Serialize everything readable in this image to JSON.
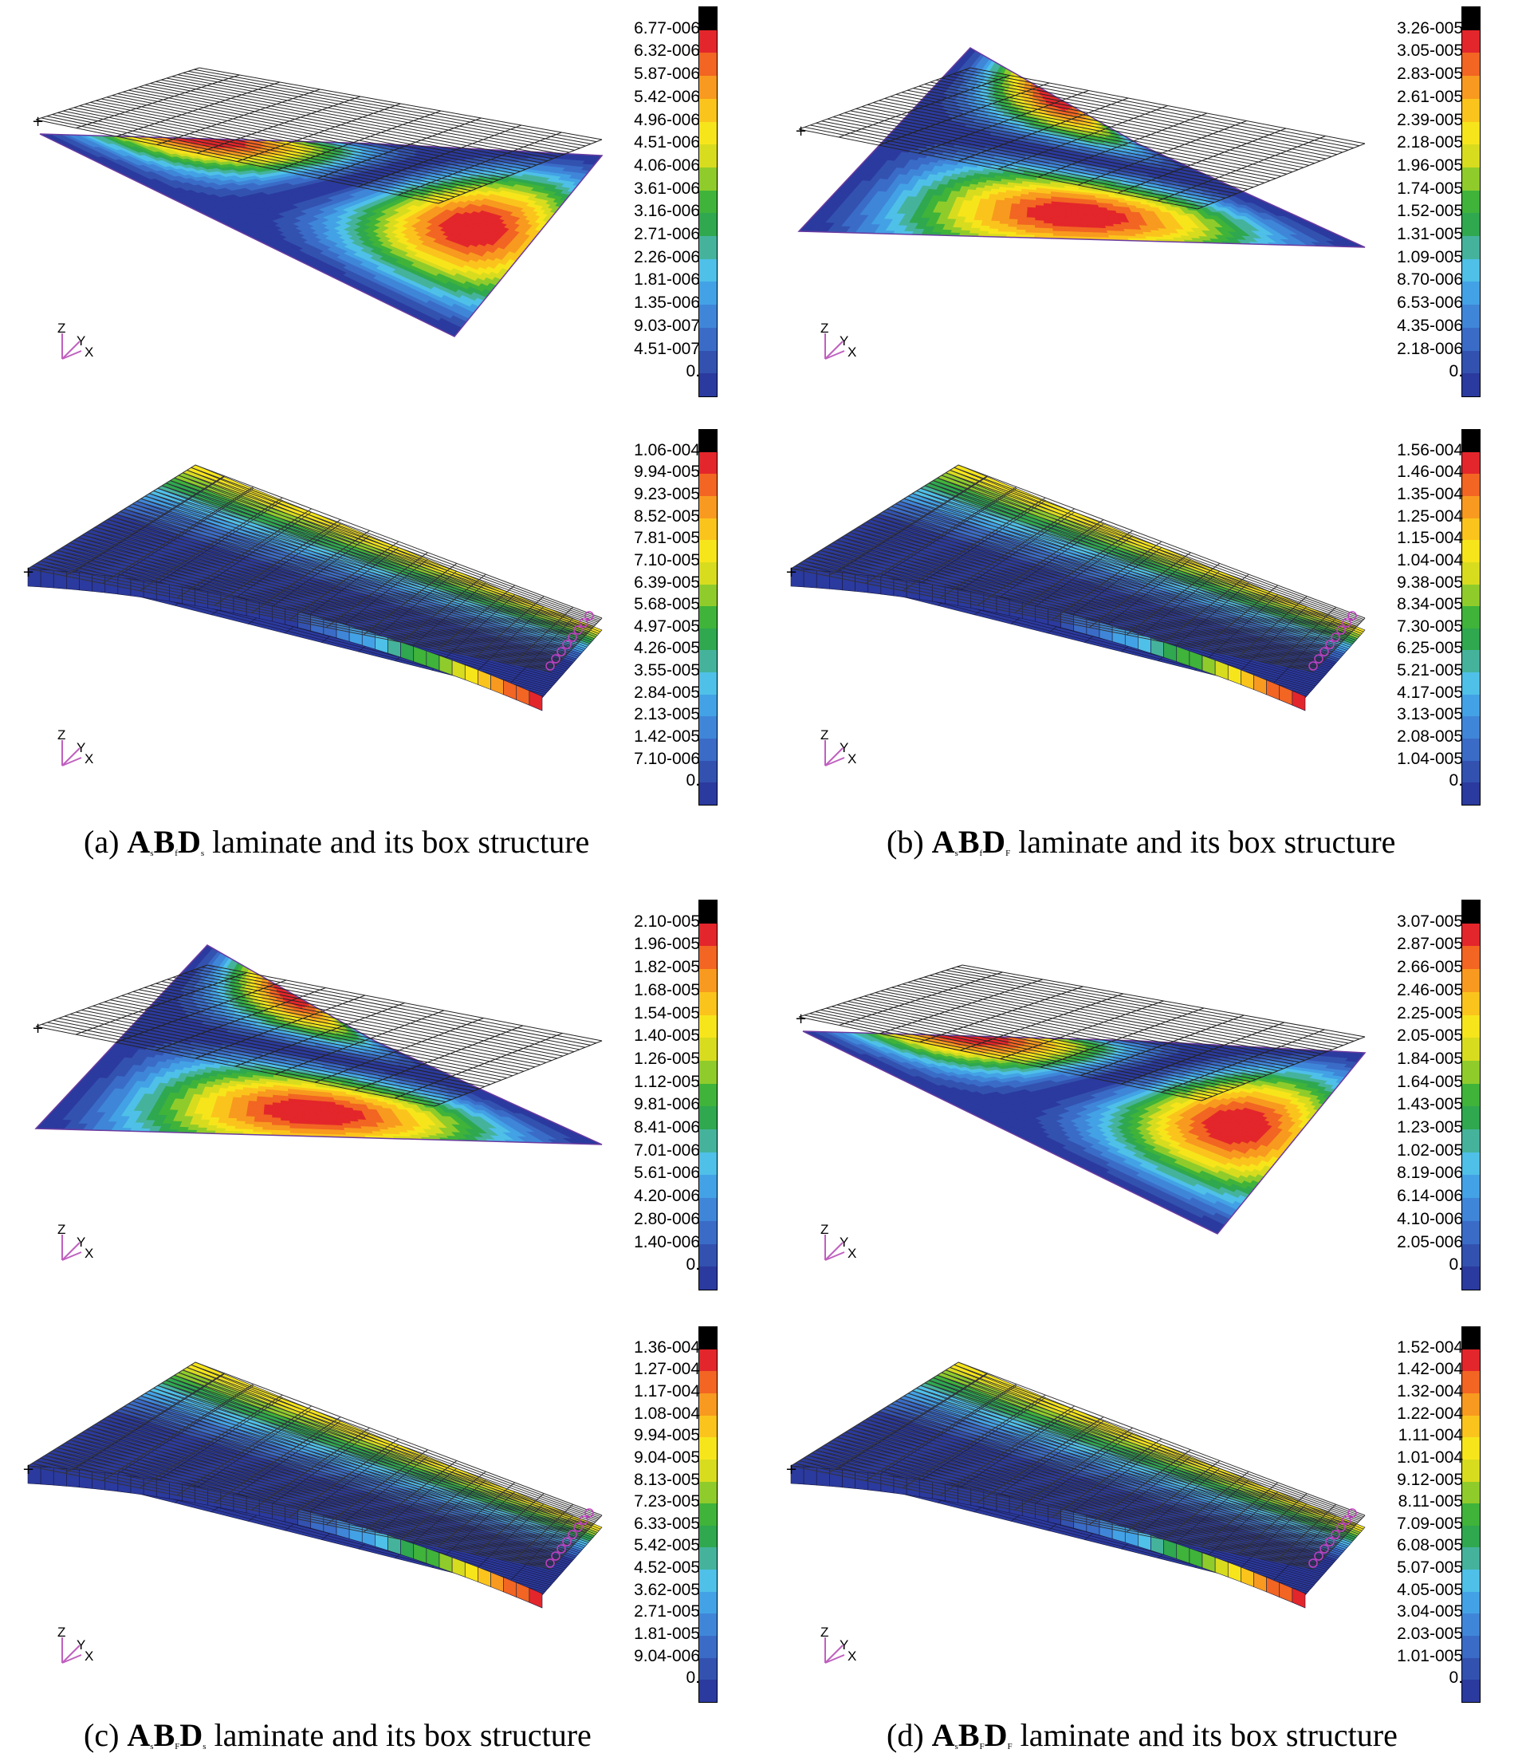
{
  "colorbar_colors": [
    "#2b3a9e",
    "#3352b0",
    "#3a6cc7",
    "#3f86d8",
    "#43a2e5",
    "#4fc0e8",
    "#45b39c",
    "#2fa84f",
    "#3fb33a",
    "#8fcc2b",
    "#d8dc1f",
    "#f7e51b",
    "#fbc41d",
    "#f89a1f",
    "#f26522",
    "#e3262b",
    "#000000"
  ],
  "captions": {
    "a": {
      "open": "(a) ",
      "A": "A",
      "As": "s",
      "B": "B",
      "Bs": "f",
      "D": "D",
      "Ds": "s",
      "rest": " laminate and its box structure"
    },
    "b": {
      "open": "(b) ",
      "A": "A",
      "As": "s",
      "B": "B",
      "Bs": "f",
      "D": "D",
      "Ds": "F",
      "rest": " laminate and its box structure"
    },
    "c": {
      "open": "(c) ",
      "A": "A",
      "As": "s",
      "B": "B",
      "Bs": "F",
      "D": "D",
      "Ds": "s",
      "rest": " laminate and its box structure"
    },
    "d": {
      "open": "(d) ",
      "A": "A",
      "As": "s",
      "B": "B",
      "Bs": "F",
      "D": "D",
      "Ds": "F",
      "rest": " laminate and its box structure"
    }
  },
  "axis_labels": {
    "z": "Z",
    "y": "Y",
    "x": "X"
  },
  "panels": [
    {
      "id": "a-plate",
      "ticks": [
        "6.77-006",
        "6.32-006",
        "5.87-006",
        "5.42-006",
        "4.96-006",
        "4.51-006",
        "4.06-006",
        "3.61-006",
        "3.16-006",
        "2.71-006",
        "2.26-006",
        "1.81-006",
        "1.35-006",
        "9.03-007",
        "4.51-007",
        "0."
      ]
    },
    {
      "id": "b-plate",
      "ticks": [
        "3.26-005",
        "3.05-005",
        "2.83-005",
        "2.61-005",
        "2.39-005",
        "2.18-005",
        "1.96-005",
        "1.74-005",
        "1.52-005",
        "1.31-005",
        "1.09-005",
        "8.70-006",
        "6.53-006",
        "4.35-006",
        "2.18-006",
        "0."
      ]
    },
    {
      "id": "a-box",
      "ticks": [
        "1.06-004",
        "9.94-005",
        "9.23-005",
        "8.52-005",
        "7.81-005",
        "7.10-005",
        "6.39-005",
        "5.68-005",
        "4.97-005",
        "4.26-005",
        "3.55-005",
        "2.84-005",
        "2.13-005",
        "1.42-005",
        "7.10-006",
        "0."
      ]
    },
    {
      "id": "b-box",
      "ticks": [
        "1.56-004",
        "1.46-004",
        "1.35-004",
        "1.25-004",
        "1.15-004",
        "1.04-004",
        "9.38-005",
        "8.34-005",
        "7.30-005",
        "6.25-005",
        "5.21-005",
        "4.17-005",
        "3.13-005",
        "2.08-005",
        "1.04-005",
        "0."
      ]
    },
    {
      "id": "c-plate",
      "ticks": [
        "2.10-005",
        "1.96-005",
        "1.82-005",
        "1.68-005",
        "1.54-005",
        "1.40-005",
        "1.26-005",
        "1.12-005",
        "9.81-006",
        "8.41-006",
        "7.01-006",
        "5.61-006",
        "4.20-006",
        "2.80-006",
        "1.40-006",
        "0."
      ]
    },
    {
      "id": "d-plate",
      "ticks": [
        "3.07-005",
        "2.87-005",
        "2.66-005",
        "2.46-005",
        "2.25-005",
        "2.05-005",
        "1.84-005",
        "1.64-005",
        "1.43-005",
        "1.23-005",
        "1.02-005",
        "8.19-006",
        "6.14-006",
        "4.10-006",
        "2.05-006",
        "0."
      ]
    },
    {
      "id": "c-box",
      "ticks": [
        "1.36-004",
        "1.27-004",
        "1.17-004",
        "1.08-004",
        "9.94-005",
        "9.04-005",
        "8.13-005",
        "7.23-005",
        "6.33-005",
        "5.42-005",
        "4.52-005",
        "3.62-005",
        "2.71-005",
        "1.81-005",
        "9.04-006",
        "0."
      ]
    },
    {
      "id": "d-box",
      "ticks": [
        "1.52-004",
        "1.42-004",
        "1.32-004",
        "1.22-004",
        "1.11-004",
        "1.01-004",
        "9.12-005",
        "8.11-005",
        "7.09-005",
        "6.08-005",
        "5.07-005",
        "4.05-005",
        "3.04-005",
        "2.03-005",
        "1.01-005",
        "0."
      ]
    }
  ]
}
